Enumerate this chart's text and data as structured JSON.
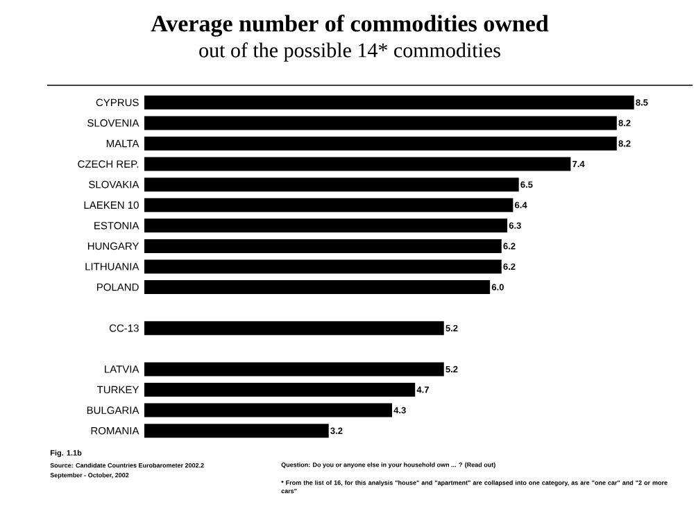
{
  "chart_data": {
    "type": "bar",
    "orientation": "horizontal",
    "title": "Average number of commodities owned",
    "subtitle": "out of the possible 14* commodities",
    "categories": [
      "CYPRUS",
      "SLOVENIA",
      "MALTA",
      "CZECH REP.",
      "SLOVAKIA",
      "LAEKEN 10",
      "ESTONIA",
      "HUNGARY",
      "LITHUANIA",
      "POLAND",
      null,
      "CC-13",
      null,
      "LATVIA",
      "TURKEY",
      "BULGARIA",
      "ROMANIA"
    ],
    "values": [
      8.5,
      8.2,
      8.2,
      7.4,
      6.5,
      6.4,
      6.3,
      6.2,
      6.2,
      6.0,
      null,
      5.2,
      null,
      5.2,
      4.7,
      4.3,
      3.2
    ],
    "value_labels": [
      "8.5",
      "8.2",
      "8.2",
      "7.4",
      "6.5",
      "6.4",
      "6.3",
      "6.2",
      "6.2",
      "6.0",
      null,
      "5.2",
      null,
      "5.2",
      "4.7",
      "4.3",
      "3.2"
    ],
    "color": "#000000",
    "tick_labels": "y",
    "annotations": [
      "Fig. 1.1b",
      "Source: Candidate Countries Eurobarometer 2002.2",
      "September - October, 2002",
      "Question:  Do you or anyone else in your household own ... ? (Read out)",
      "* From the list of 16, for this analysis \"house\" and \"apartment\" are collapsed into one category, as are \"one car\" and \"2 or more cars\""
    ]
  }
}
